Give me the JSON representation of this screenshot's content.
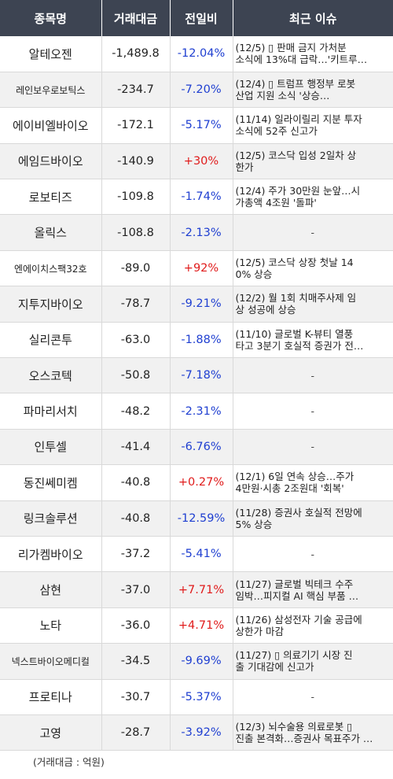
{
  "headers": {
    "name": "종목명",
    "volume": "거래대금",
    "change": "전일비",
    "issue": "최근 이슈"
  },
  "rows": [
    {
      "name": "알테오젠",
      "volume": "-1,489.8",
      "change": "-12.04%",
      "dir": "down",
      "issue_l1": "(12/5) ▯ 판매 금지 가처분",
      "issue_l2": "소식에 13%대 급락…'키트루…"
    },
    {
      "name": "레인보우로보틱스",
      "volume": "-234.7",
      "change": "-7.20%",
      "dir": "down",
      "issue_l1": "(12/4) ▯ 트럼프 행정부 로봇",
      "issue_l2": "산업 지원 소식 '상승…",
      "small": true
    },
    {
      "name": "에이비엘바이오",
      "volume": "-172.1",
      "change": "-5.17%",
      "dir": "down",
      "issue_l1": "(11/14) 일라이릴리 지분 투자",
      "issue_l2": "소식에 52주 신고가"
    },
    {
      "name": "에임드바이오",
      "volume": "-140.9",
      "change": "+30%",
      "dir": "up",
      "issue_l1": "(12/5) 코스닥 입성 2일차 상",
      "issue_l2": "한가"
    },
    {
      "name": "로보티즈",
      "volume": "-109.8",
      "change": "-1.74%",
      "dir": "down",
      "issue_l1": "(12/4) 주가 30만원 눈앞…시",
      "issue_l2": "가총액 4조원 '돌파'"
    },
    {
      "name": "올릭스",
      "volume": "-108.8",
      "change": "-2.13%",
      "dir": "down",
      "issue_l1": "-",
      "issue_l2": ""
    },
    {
      "name": "엔에이치스팩32호",
      "volume": "-89.0",
      "change": "+92%",
      "dir": "up",
      "issue_l1": "(12/5) 코스닥 상장 첫날 14",
      "issue_l2": "0% 상승",
      "small": true
    },
    {
      "name": "지투지바이오",
      "volume": "-78.7",
      "change": "-9.21%",
      "dir": "down",
      "issue_l1": "(12/2) 월 1회 치매주사제 임",
      "issue_l2": "상 성공에 상승"
    },
    {
      "name": "실리콘투",
      "volume": "-63.0",
      "change": "-1.88%",
      "dir": "down",
      "issue_l1": "(11/10) 글로벌 K-뷰티 열풍",
      "issue_l2": "타고 3분기 호실적 증권가 전…"
    },
    {
      "name": "오스코텍",
      "volume": "-50.8",
      "change": "-7.18%",
      "dir": "down",
      "issue_l1": "-",
      "issue_l2": ""
    },
    {
      "name": "파마리서치",
      "volume": "-48.2",
      "change": "-2.31%",
      "dir": "down",
      "issue_l1": "-",
      "issue_l2": ""
    },
    {
      "name": "인투셀",
      "volume": "-41.4",
      "change": "-6.76%",
      "dir": "down",
      "issue_l1": "-",
      "issue_l2": ""
    },
    {
      "name": "동진쎄미켐",
      "volume": "-40.8",
      "change": "+0.27%",
      "dir": "up",
      "issue_l1": "(12/1) 6일 연속 상승…주가",
      "issue_l2": "4만원·시총 2조원대 '회복'"
    },
    {
      "name": "링크솔루션",
      "volume": "-40.8",
      "change": "-12.59%",
      "dir": "down",
      "issue_l1": "(11/28) 증권사 호실적 전망에",
      "issue_l2": "5% 상승"
    },
    {
      "name": "리가켐바이오",
      "volume": "-37.2",
      "change": "-5.41%",
      "dir": "down",
      "issue_l1": "-",
      "issue_l2": ""
    },
    {
      "name": "삼현",
      "volume": "-37.0",
      "change": "+7.71%",
      "dir": "up",
      "issue_l1": "(11/27) 글로벌 빅테크 수주",
      "issue_l2": "임박…피지컬 AI 핵심 부품 …"
    },
    {
      "name": "노타",
      "volume": "-36.0",
      "change": "+4.71%",
      "dir": "up",
      "issue_l1": "(11/26) 삼성전자 기술 공급에",
      "issue_l2": "상한가 마감"
    },
    {
      "name": "넥스트바이오메디컬",
      "volume": "-34.5",
      "change": "-9.69%",
      "dir": "down",
      "issue_l1": "(11/27) ▯ 의료기기 시장 진",
      "issue_l2": "출 기대감에 신고가",
      "small": true
    },
    {
      "name": "프로티나",
      "volume": "-30.7",
      "change": "-5.37%",
      "dir": "down",
      "issue_l1": "-",
      "issue_l2": ""
    },
    {
      "name": "고영",
      "volume": "-28.7",
      "change": "-3.92%",
      "dir": "down",
      "issue_l1": "(12/3) 뇌수술용 의료로봇 ▯",
      "issue_l2": "진출 본격화…증권사 목표주가 …"
    }
  ],
  "footnote": "(거래대금 : 억원)",
  "colors": {
    "header_bg": "#3d4452",
    "down": "#1f3fd1",
    "up": "#e01b1b"
  }
}
